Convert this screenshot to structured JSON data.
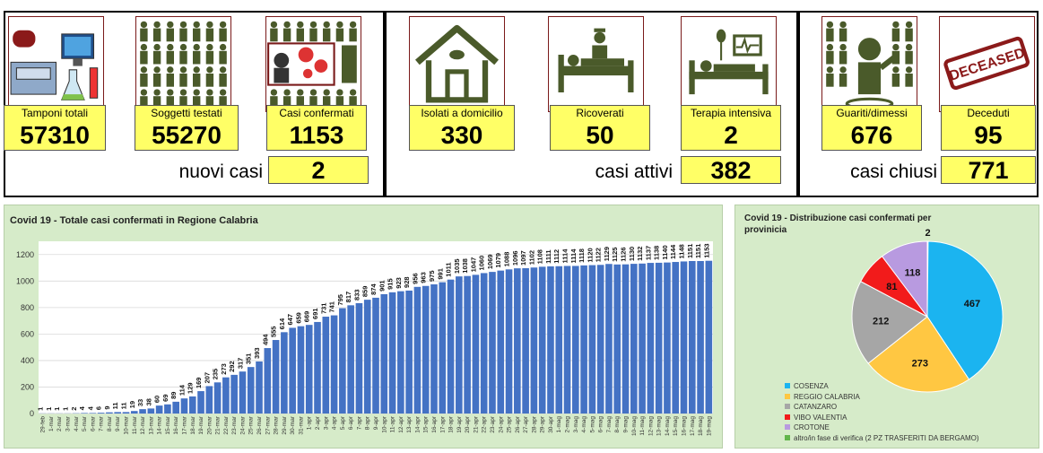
{
  "cards": [
    {
      "label": "Tamponi totali",
      "value": "57310",
      "icon": "lab-equipment-icon"
    },
    {
      "label": "Soggetti testati",
      "value": "55270",
      "icon": "people-grid-icon"
    },
    {
      "label": "Casi confermati",
      "value": "1153",
      "icon": "virus-people-icon"
    },
    {
      "label": "Isolati a domicilio",
      "value": "330",
      "icon": "house-icon"
    },
    {
      "label": "Ricoverati",
      "value": "50",
      "icon": "hospital-bed-icon"
    },
    {
      "label": "Terapia intensiva",
      "value": "2",
      "icon": "intensive-care-icon"
    },
    {
      "label": "Guariti/dimessi",
      "value": "676",
      "icon": "recovered-person-icon"
    },
    {
      "label": "Deceduti",
      "value": "95",
      "icon": "deceased-stamp-icon"
    }
  ],
  "stamp_text": "DECEASED",
  "summary": {
    "nuovi_casi": {
      "label": "nuovi casi",
      "value": "2"
    },
    "casi_attivi": {
      "label": "casi attivi",
      "value": "382"
    },
    "casi_chiusi": {
      "label": "casi chiusi",
      "value": "771"
    }
  },
  "chart_data": [
    {
      "type": "bar",
      "title": "Covid 19 - Totale casi confermati in Regione Calabria",
      "xlabel": "",
      "ylabel": "",
      "ylim": [
        0,
        1300
      ],
      "yticks": [
        0,
        200,
        400,
        600,
        800,
        1000,
        1200
      ],
      "color": "#4472c4",
      "categories": [
        "29-feb",
        "1-mar",
        "2-mar",
        "3-mar",
        "4-mar",
        "5-mar",
        "6-mar",
        "7-mar",
        "8-mar",
        "9-mar",
        "10-mar",
        "11-mar",
        "12-mar",
        "13-mar",
        "14-mar",
        "15-mar",
        "16-mar",
        "17-mar",
        "18-mar",
        "19-mar",
        "20-mar",
        "21-mar",
        "22-mar",
        "23-mar",
        "24-mar",
        "25-mar",
        "26-mar",
        "27-mar",
        "28-mar",
        "29-mar",
        "30-mar",
        "31-mar",
        "1-apr",
        "2-apr",
        "3-apr",
        "4-apr",
        "5-apr",
        "6-apr",
        "7-apr",
        "8-apr",
        "9-apr",
        "10-apr",
        "11-apr",
        "12-apr",
        "13-apr",
        "14-apr",
        "15-apr",
        "16-apr",
        "17-apr",
        "18-apr",
        "19-apr",
        "20-apr",
        "21-apr",
        "22-apr",
        "23-apr",
        "24-apr",
        "25-apr",
        "26-apr",
        "27-apr",
        "28-apr",
        "29-apr",
        "30-apr",
        "1-mag",
        "2-mag",
        "3-mag",
        "4-mag",
        "5-mag",
        "6-mag",
        "7-mag",
        "8-mag",
        "9-mag",
        "10-mag",
        "11-mag",
        "12-mag",
        "13-mag",
        "14-mag",
        "15-mag",
        "16-mag",
        "17-mag",
        "18-mag",
        "19-mag"
      ],
      "values": [
        1,
        1,
        1,
        1,
        2,
        4,
        4,
        6,
        9,
        11,
        11,
        19,
        33,
        38,
        60,
        69,
        89,
        114,
        129,
        169,
        207,
        235,
        273,
        292,
        317,
        351,
        393,
        494,
        555,
        614,
        647,
        659,
        669,
        691,
        731,
        741,
        795,
        817,
        833,
        859,
        874,
        901,
        915,
        923,
        928,
        956,
        963,
        975,
        991,
        1011,
        1035,
        1038,
        1047,
        1060,
        1069,
        1079,
        1088,
        1096,
        1097,
        1102,
        1108,
        1111,
        1112,
        1114,
        1114,
        1118,
        1120,
        1122,
        1129,
        1125,
        1126,
        1130,
        1132,
        1137,
        1138,
        1140,
        1144,
        1148,
        1151,
        1151,
        1153
      ]
    },
    {
      "type": "pie",
      "title": "Covid 19 - Distribuzione casi confermati per provinicia",
      "slices": [
        {
          "label": "COSENZA",
          "value": 467,
          "color": "#1bb4f0"
        },
        {
          "label": "REGGIO CALABRIA",
          "value": 273,
          "color": "#ffc742"
        },
        {
          "label": "CATANZARO",
          "value": 212,
          "color": "#a6a6a6"
        },
        {
          "label": "VIBO VALENTIA",
          "value": 81,
          "color": "#f21b1b"
        },
        {
          "label": "CROTONE",
          "value": 118,
          "color": "#b89ae0"
        },
        {
          "label": "altro/in fase di verifica (2 PZ TRASFERITI DA BERGAMO)",
          "value": 2,
          "color": "#62b54b"
        }
      ],
      "legend_position": "bottom-left"
    }
  ]
}
